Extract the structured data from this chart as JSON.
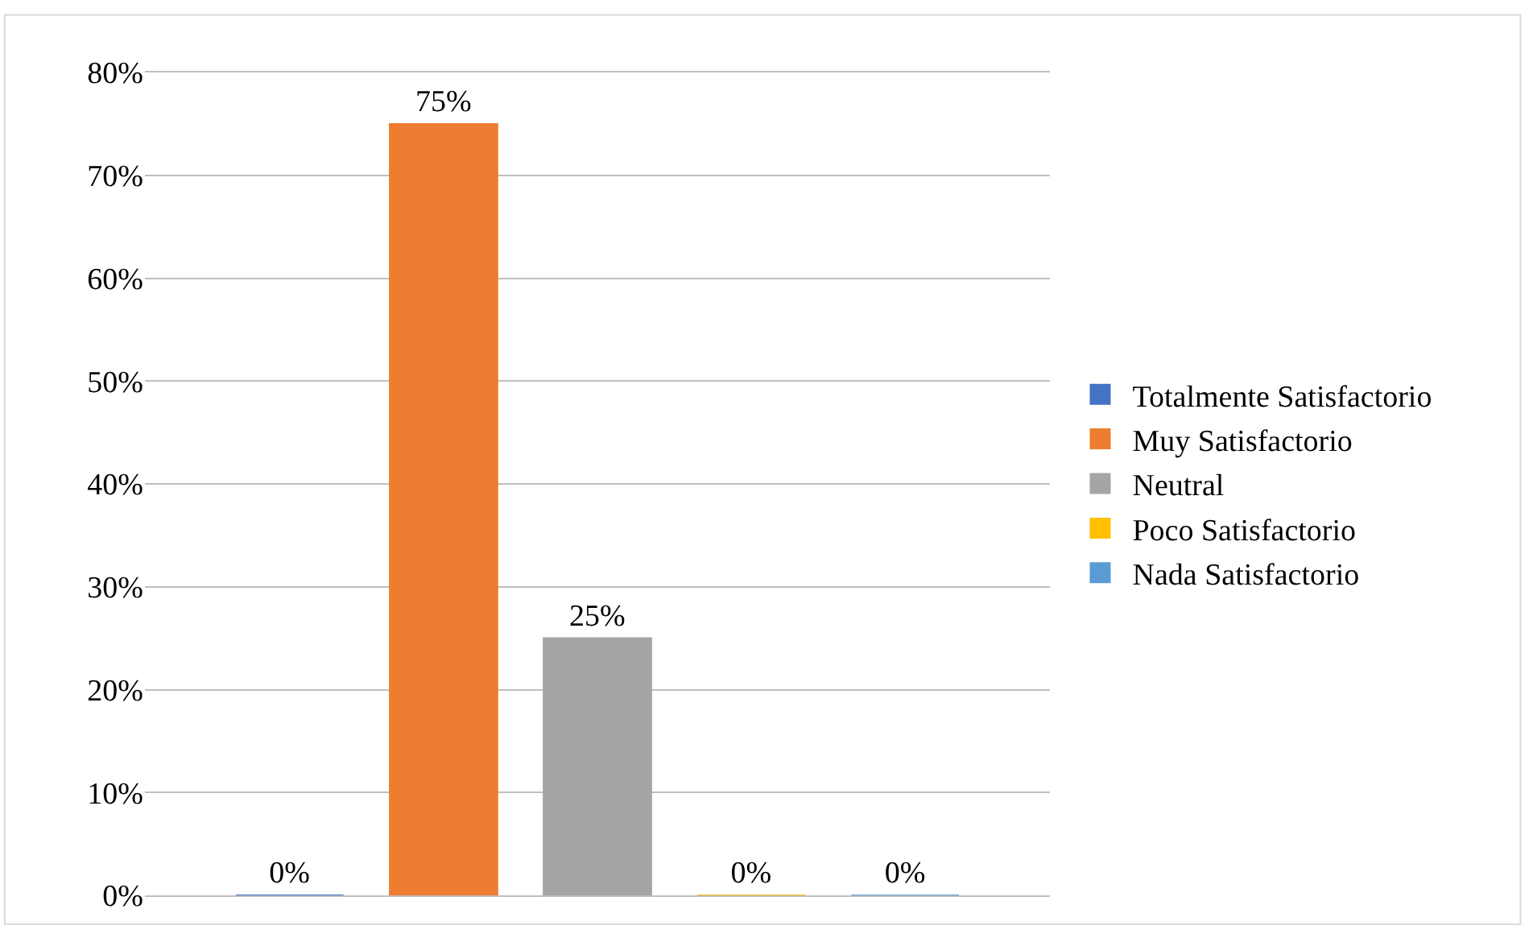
{
  "chart_data": {
    "type": "bar",
    "categories": [
      null
    ],
    "series": [
      {
        "name": "Totalmente Satisfactorio",
        "color": "#4472c4",
        "values": [
          0
        ],
        "value_labels": [
          "0%"
        ]
      },
      {
        "name": "Muy Satisfactorio",
        "color": "#ed7d31",
        "values": [
          75
        ],
        "value_labels": [
          "75%"
        ]
      },
      {
        "name": "Neutral",
        "color": "#a5a5a5",
        "values": [
          25
        ],
        "value_labels": [
          "25%"
        ]
      },
      {
        "name": "Poco Satisfactorio",
        "color": "#ffc000",
        "values": [
          0
        ],
        "value_labels": [
          "0%"
        ]
      },
      {
        "name": "Nada Satisfactorio",
        "color": "#5b9bd5",
        "values": [
          0
        ],
        "value_labels": [
          "0%"
        ]
      }
    ],
    "ylim": [
      0,
      80
    ],
    "yticks": [
      {
        "value": 0,
        "label": "0%"
      },
      {
        "value": 10,
        "label": "10%"
      },
      {
        "value": 20,
        "label": "20%"
      },
      {
        "value": 30,
        "label": "30%"
      },
      {
        "value": 40,
        "label": "40%"
      },
      {
        "value": 50,
        "label": "50%"
      },
      {
        "value": 60,
        "label": "60%"
      },
      {
        "value": 70,
        "label": "70%"
      },
      {
        "value": 80,
        "label": "80%"
      }
    ],
    "grid": "y",
    "legend": "right",
    "tick_labels": "y"
  }
}
